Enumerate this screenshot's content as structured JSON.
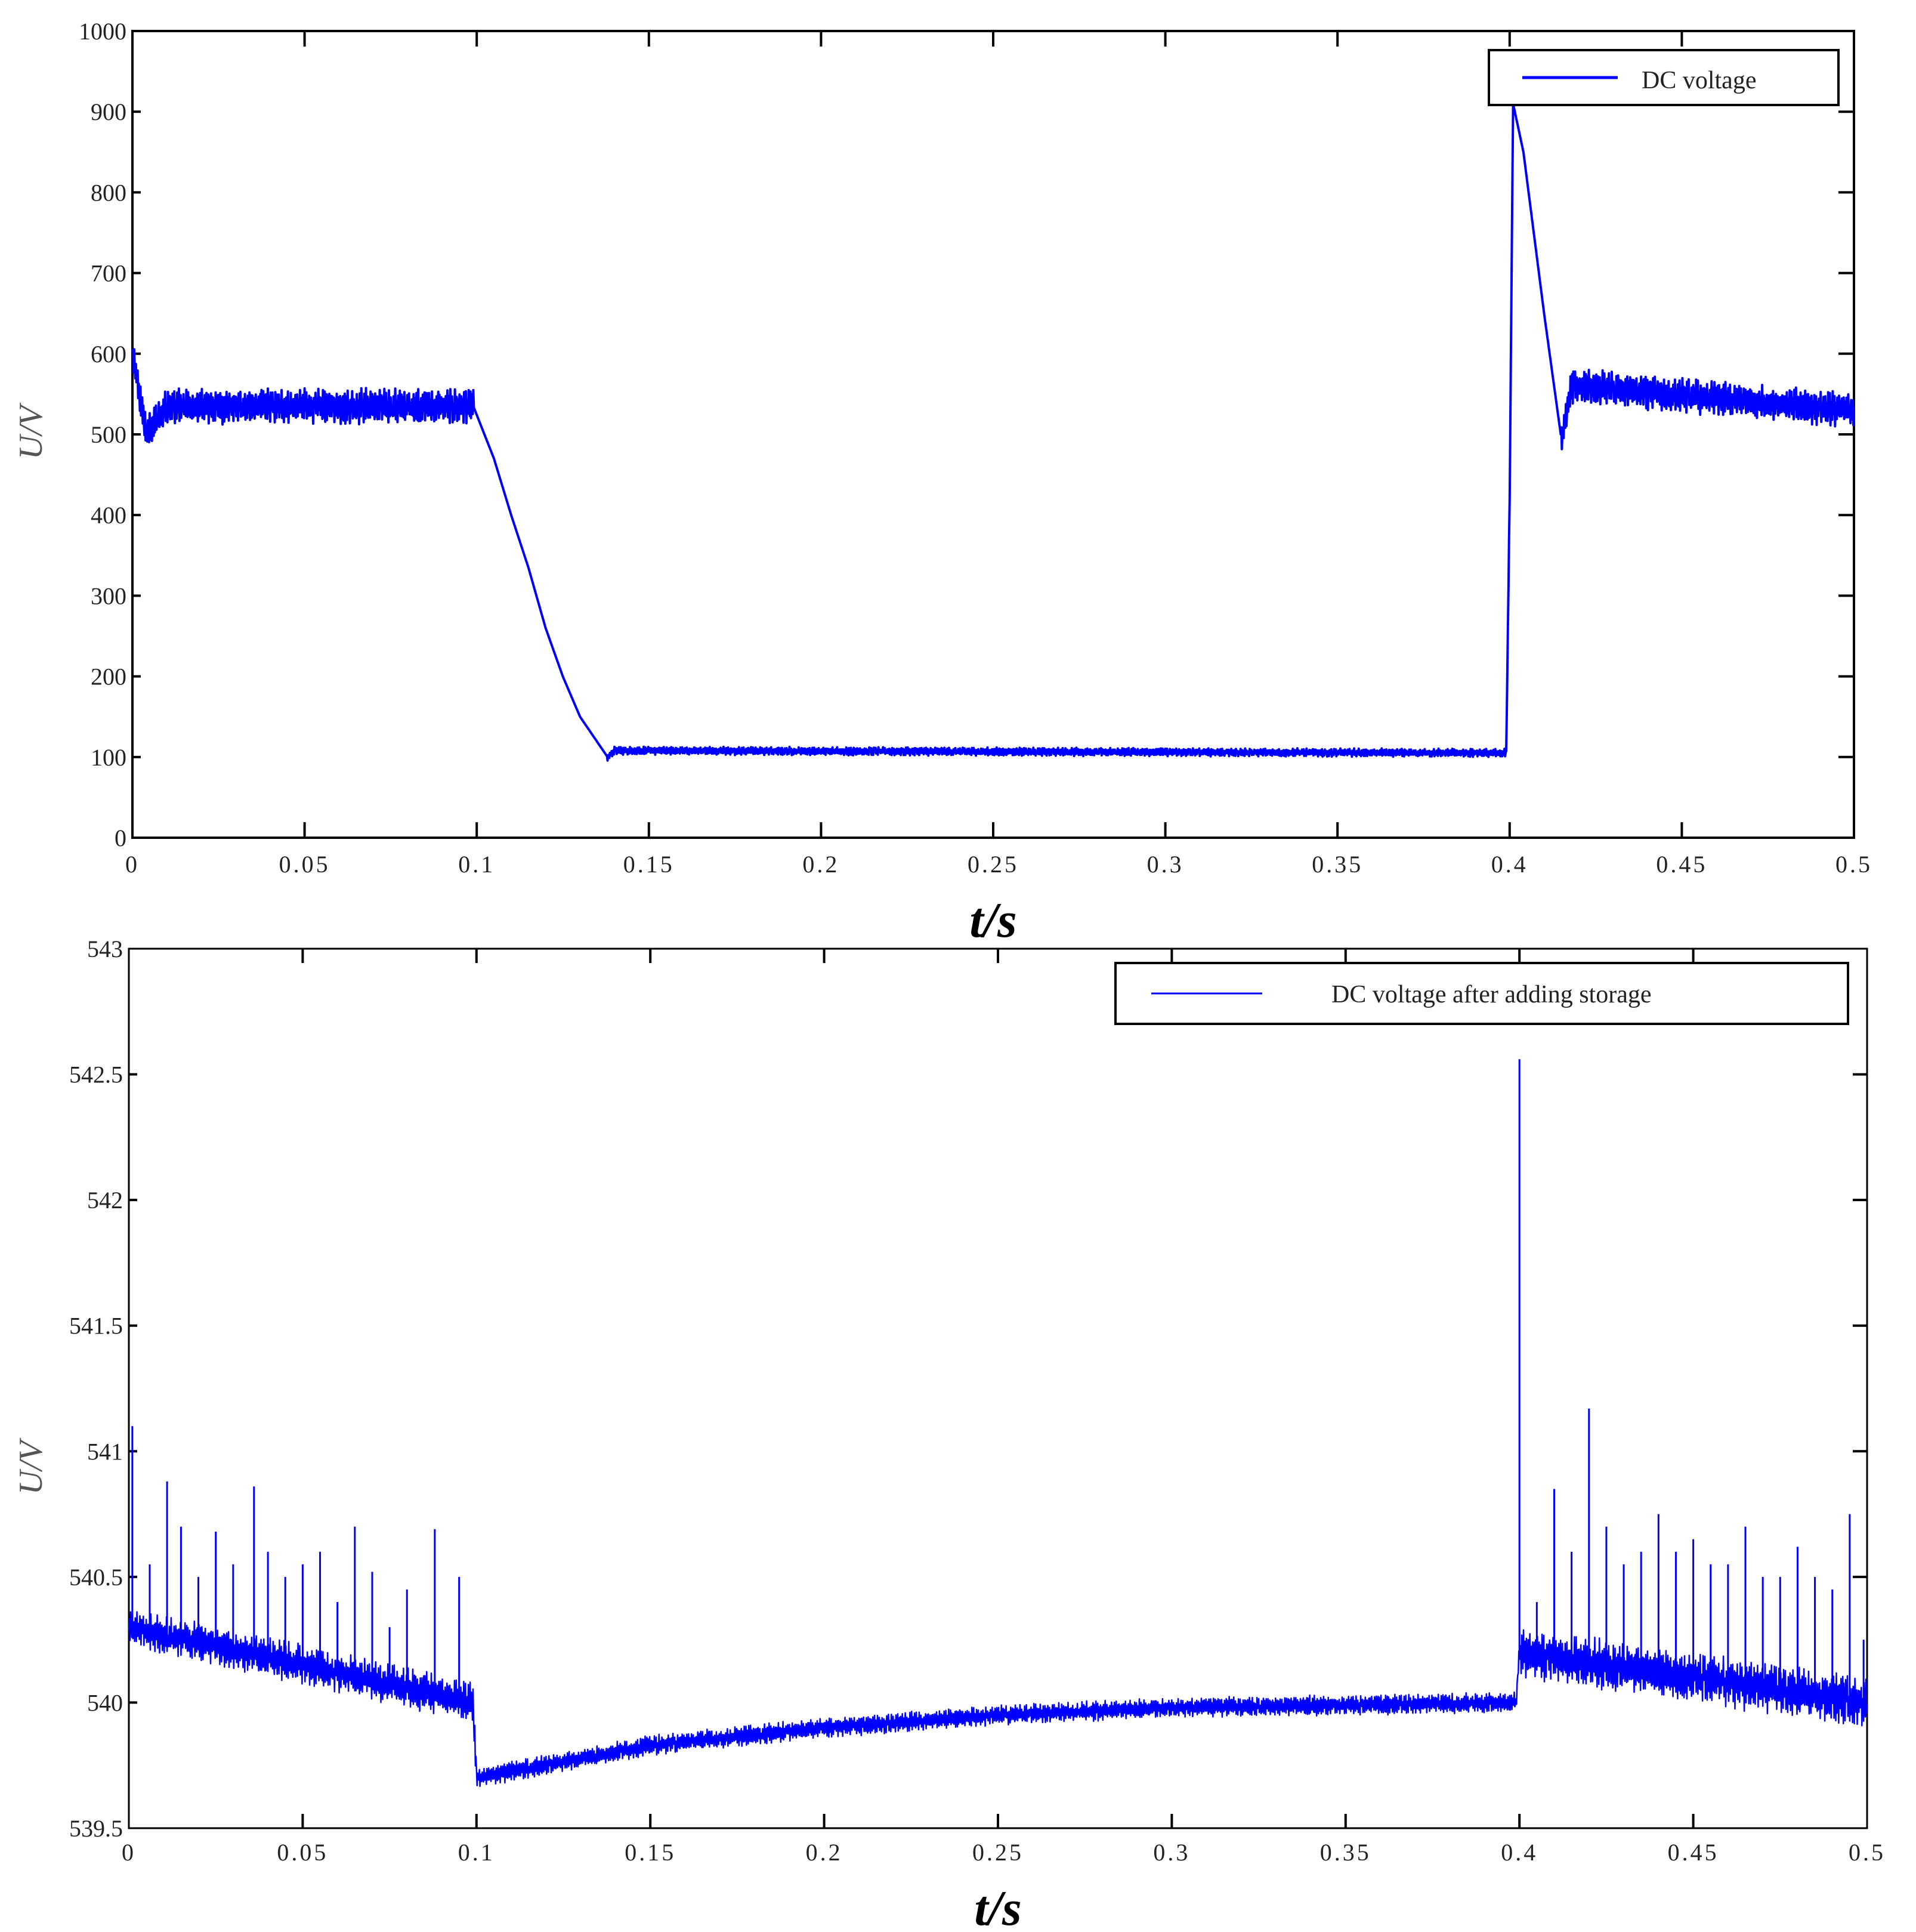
{
  "colors": {
    "series": "#0000ff",
    "axis": "#000000"
  },
  "chart_data": [
    {
      "type": "line",
      "title": "",
      "xlabel": "t/s",
      "ylabel": "U/V",
      "xlim": [
        0,
        0.5
      ],
      "ylim": [
        0,
        1000
      ],
      "x_ticks": [
        "0",
        "0.05",
        "0.1",
        "0.15",
        "0.2",
        "0.25",
        "0.3",
        "0.35",
        "0.4",
        "0.45",
        "0.5"
      ],
      "y_ticks": [
        "0",
        "100",
        "200",
        "300",
        "400",
        "500",
        "600",
        "700",
        "800",
        "900",
        "1000"
      ],
      "legend": {
        "position": "top-right",
        "entries": [
          "DC voltage"
        ]
      },
      "series": [
        {
          "name": "DC voltage",
          "envelope": [
            {
              "x": 0.0,
              "y": 600
            },
            {
              "x": 0.004,
              "y": 500
            },
            {
              "x": 0.01,
              "y": 535
            },
            {
              "x": 0.099,
              "y": 535
            },
            {
              "x": 0.105,
              "y": 470
            },
            {
              "x": 0.11,
              "y": 400
            },
            {
              "x": 0.115,
              "y": 335
            },
            {
              "x": 0.12,
              "y": 260
            },
            {
              "x": 0.125,
              "y": 200
            },
            {
              "x": 0.13,
              "y": 150
            },
            {
              "x": 0.138,
              "y": 100
            },
            {
              "x": 0.14,
              "y": 108
            },
            {
              "x": 0.399,
              "y": 105
            },
            {
              "x": 0.4,
              "y": 420
            },
            {
              "x": 0.401,
              "y": 910
            },
            {
              "x": 0.404,
              "y": 850
            },
            {
              "x": 0.41,
              "y": 650
            },
            {
              "x": 0.415,
              "y": 495
            },
            {
              "x": 0.418,
              "y": 560
            },
            {
              "x": 0.5,
              "y": 530
            }
          ],
          "ripple": [
            {
              "from": 0.0,
              "to": 0.099,
              "amplitude": 22
            },
            {
              "from": 0.138,
              "to": 0.4,
              "amplitude": 5
            },
            {
              "from": 0.415,
              "to": 0.5,
              "amplitude": 22
            }
          ]
        }
      ]
    },
    {
      "type": "line",
      "title": "",
      "xlabel": "t/s",
      "ylabel": "U/V",
      "xlim": [
        0,
        0.5
      ],
      "ylim": [
        539.5,
        543
      ],
      "x_ticks": [
        "0",
        "0.05",
        "0.1",
        "0.15",
        "0.2",
        "0.25",
        "0.3",
        "0.35",
        "0.4",
        "0.45",
        "0.5"
      ],
      "y_ticks": [
        "539.5",
        "540",
        "540.5",
        "541",
        "541.5",
        "542",
        "542.5",
        "543"
      ],
      "legend": {
        "position": "top-right",
        "entries": [
          "DC voltage after adding  storage"
        ]
      },
      "series": [
        {
          "name": "DC voltage after adding  storage",
          "envelope": [
            {
              "x": 0.0,
              "y": 540.3
            },
            {
              "x": 0.05,
              "y": 540.15
            },
            {
              "x": 0.099,
              "y": 540.0
            },
            {
              "x": 0.1,
              "y": 539.7
            },
            {
              "x": 0.15,
              "y": 539.83
            },
            {
              "x": 0.2,
              "y": 539.9
            },
            {
              "x": 0.25,
              "y": 539.95
            },
            {
              "x": 0.3,
              "y": 539.98
            },
            {
              "x": 0.399,
              "y": 540.0
            },
            {
              "x": 0.4,
              "y": 540.2
            },
            {
              "x": 0.45,
              "y": 540.1
            },
            {
              "x": 0.5,
              "y": 540.0
            }
          ],
          "ripple": [
            {
              "from": 0.0,
              "to": 0.1,
              "amplitude": 0.08
            },
            {
              "from": 0.1,
              "to": 0.4,
              "amplitude": 0.04
            },
            {
              "from": 0.4,
              "to": 0.5,
              "amplitude": 0.1
            }
          ],
          "spikes": [
            {
              "x": 0.001,
              "y": 541.1
            },
            {
              "x": 0.006,
              "y": 540.55
            },
            {
              "x": 0.011,
              "y": 540.88
            },
            {
              "x": 0.015,
              "y": 540.7
            },
            {
              "x": 0.02,
              "y": 540.5
            },
            {
              "x": 0.025,
              "y": 540.68
            },
            {
              "x": 0.03,
              "y": 540.55
            },
            {
              "x": 0.036,
              "y": 540.86
            },
            {
              "x": 0.04,
              "y": 540.6
            },
            {
              "x": 0.045,
              "y": 540.5
            },
            {
              "x": 0.05,
              "y": 540.55
            },
            {
              "x": 0.055,
              "y": 540.6
            },
            {
              "x": 0.06,
              "y": 540.4
            },
            {
              "x": 0.065,
              "y": 540.7
            },
            {
              "x": 0.07,
              "y": 540.52
            },
            {
              "x": 0.075,
              "y": 540.3
            },
            {
              "x": 0.08,
              "y": 540.45
            },
            {
              "x": 0.088,
              "y": 540.69
            },
            {
              "x": 0.095,
              "y": 540.5
            },
            {
              "x": 0.4,
              "y": 542.56
            },
            {
              "x": 0.405,
              "y": 540.4
            },
            {
              "x": 0.41,
              "y": 540.85
            },
            {
              "x": 0.415,
              "y": 540.6
            },
            {
              "x": 0.42,
              "y": 541.17
            },
            {
              "x": 0.425,
              "y": 540.7
            },
            {
              "x": 0.43,
              "y": 540.55
            },
            {
              "x": 0.435,
              "y": 540.6
            },
            {
              "x": 0.44,
              "y": 540.75
            },
            {
              "x": 0.445,
              "y": 540.6
            },
            {
              "x": 0.45,
              "y": 540.65
            },
            {
              "x": 0.455,
              "y": 540.55
            },
            {
              "x": 0.46,
              "y": 540.55
            },
            {
              "x": 0.465,
              "y": 540.7
            },
            {
              "x": 0.47,
              "y": 540.5
            },
            {
              "x": 0.475,
              "y": 540.5
            },
            {
              "x": 0.48,
              "y": 540.62
            },
            {
              "x": 0.485,
              "y": 540.5
            },
            {
              "x": 0.49,
              "y": 540.45
            },
            {
              "x": 0.495,
              "y": 540.75
            },
            {
              "x": 0.499,
              "y": 540.25
            }
          ]
        }
      ]
    }
  ]
}
